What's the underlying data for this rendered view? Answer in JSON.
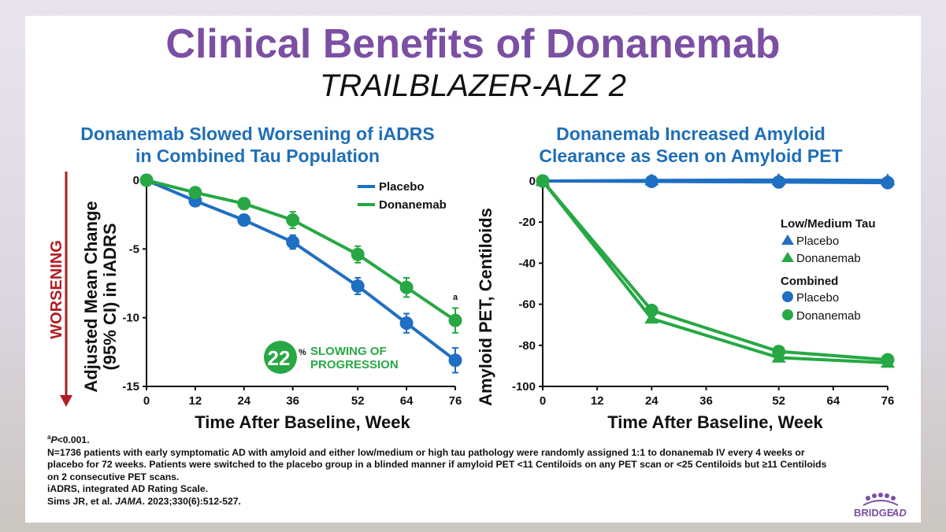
{
  "slide": {
    "title": "Clinical Benefits of Donanemab",
    "subtitle": "TRAILBLAZER-ALZ 2"
  },
  "colors": {
    "placebo": "#1f6fc2",
    "donanemab": "#27a844",
    "title": "#7b4fa3",
    "worsening": "#b01e23"
  },
  "chart_data": [
    {
      "type": "line",
      "title": "Donanemab Slowed Worsening of iADRS in Combined Tau Population",
      "title_lines": [
        "Donanemab Slowed Worsening of iADRS",
        "in Combined Tau Population"
      ],
      "xlabel": "Time After Baseline, Week",
      "ylabel": "Adjusted Mean Change (95% CI) in iADRS",
      "ylabel_lines": [
        "Adjusted Mean Change",
        "(95% CI) in iADRS"
      ],
      "side_label": "WORSENING",
      "xlim": [
        0,
        76
      ],
      "ylim": [
        -15,
        0
      ],
      "xticks": [
        0,
        12,
        24,
        36,
        52,
        64,
        76
      ],
      "yticks": [
        0,
        -5,
        -10,
        -15
      ],
      "ytick_labels": [
        "0",
        "-5",
        "-10",
        "-15"
      ],
      "x": [
        0,
        4,
        12,
        24,
        36,
        52,
        64,
        76
      ],
      "series": [
        {
          "name": "Placebo",
          "color_key": "placebo",
          "marker": "circle",
          "values": [
            0,
            null,
            -1.5,
            -2.9,
            -4.5,
            -7.7,
            -10.4,
            -13.1
          ],
          "ci": [
            null,
            null,
            0.3,
            0.4,
            0.5,
            0.6,
            0.7,
            0.9
          ]
        },
        {
          "name": "Donanemab",
          "color_key": "donanemab",
          "marker": "circle",
          "values": [
            0,
            null,
            -0.9,
            -1.7,
            -2.9,
            -5.4,
            -7.8,
            -10.2
          ],
          "ci": [
            null,
            null,
            0.3,
            0.4,
            0.6,
            0.6,
            0.7,
            0.9
          ]
        }
      ],
      "annotation": "a",
      "callout": {
        "value": "22",
        "unit": "%",
        "text_lines": [
          "SLOWING OF",
          "PROGRESSION"
        ]
      },
      "legend": [
        "Placebo",
        "Donanemab"
      ]
    },
    {
      "type": "line",
      "title": "Donanemab Increased Amyloid Clearance as Seen on Amyloid PET",
      "title_lines": [
        "Donanemab Increased Amyloid",
        "Clearance as Seen on Amyloid PET"
      ],
      "xlabel": "Time After Baseline, Week",
      "ylabel": "Amyloid PET, Centiloids",
      "xlim": [
        0,
        76
      ],
      "ylim": [
        -100,
        0
      ],
      "xticks": [
        0,
        12,
        24,
        36,
        52,
        64,
        76
      ],
      "yticks": [
        0,
        -20,
        -40,
        -60,
        -80,
        -100
      ],
      "ytick_labels": [
        "0",
        "-20",
        "-40",
        "-60",
        "-80",
        "-100"
      ],
      "x": [
        0,
        24,
        52,
        76
      ],
      "series": [
        {
          "name": "Placebo",
          "group": "Low/Medium Tau",
          "color_key": "placebo",
          "marker": "triangle",
          "values": [
            0,
            0.3,
            0.5,
            0.3
          ]
        },
        {
          "name": "Donanemab",
          "group": "Low/Medium Tau",
          "color_key": "donanemab",
          "marker": "triangle",
          "values": [
            0,
            -67,
            -86,
            -88.5
          ]
        },
        {
          "name": "Placebo",
          "group": "Combined",
          "color_key": "placebo",
          "marker": "circle",
          "values": [
            0,
            -0.2,
            -0.5,
            -0.8
          ]
        },
        {
          "name": "Donanemab",
          "group": "Combined",
          "color_key": "donanemab",
          "marker": "circle",
          "values": [
            0,
            -63,
            -83,
            -87
          ]
        }
      ],
      "legend_groups": [
        {
          "title": "Low/Medium Tau",
          "items": [
            "Placebo",
            "Donanemab"
          ]
        },
        {
          "title": "Combined",
          "items": [
            "Placebo",
            "Donanemab"
          ]
        }
      ]
    }
  ],
  "footnotes": {
    "a": "P<0.001.",
    "a_sup": "a",
    "a_italic": "P",
    "a_rest": "<0.001.",
    "lines": [
      "N=1736 patients with early symptomatic AD with amyloid and either low/medium or high tau pathology were randomly assigned 1:1 to donanemab IV every 4 weeks or",
      "placebo for 72 weeks. Patients were switched to the placebo group in a blinded manner if amyloid PET <11 Centiloids on any PET scan or <25 Centiloids but ≥11 Centiloids",
      "on 2 consecutive PET scans.",
      "iADRS, integrated AD Rating Scale."
    ],
    "citation_author": "Sims JR, et al. ",
    "citation_journal": "JAMA",
    "citation_rest": ". 2023;330(6):512-527."
  },
  "logo": {
    "text": "BRIDGE",
    "text_italic": "AD"
  }
}
